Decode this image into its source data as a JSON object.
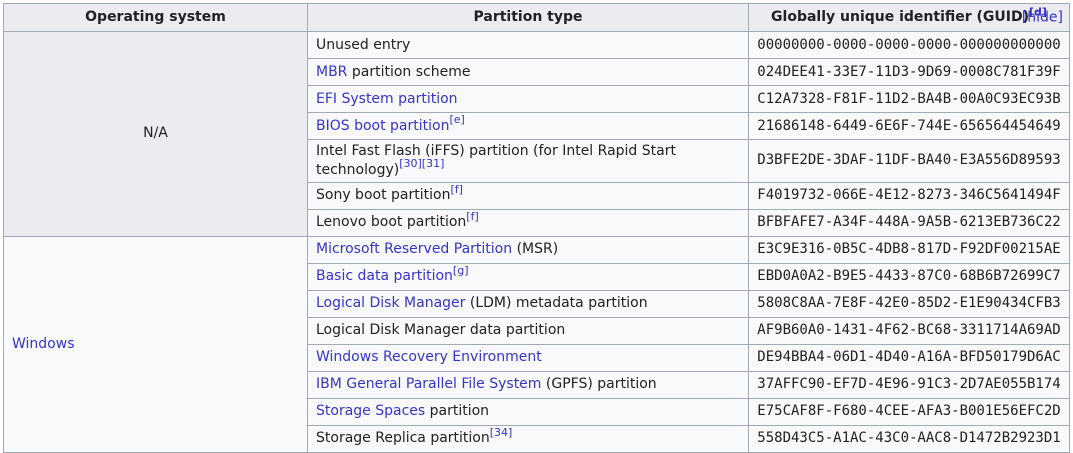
{
  "table": {
    "headers": {
      "os": "Operating system",
      "partition": "Partition type"
    },
    "guid_header": {
      "label": "Globally unique identifier (GUID)",
      "ref": "[d]",
      "toggle": "[hide]"
    },
    "os_groups": [
      {
        "label": "N/A",
        "link": false,
        "rowspan": 7
      },
      {
        "label": "Windows",
        "link": true,
        "rowspan": 8
      }
    ],
    "rows": [
      {
        "partition": [
          {
            "t": "Unused entry",
            "k": "text"
          }
        ],
        "guid": "00000000-0000-0000-0000-000000000000"
      },
      {
        "partition": [
          {
            "t": "MBR",
            "k": "link"
          },
          {
            "t": " partition scheme",
            "k": "text"
          }
        ],
        "guid": "024DEE41-33E7-11D3-9D69-0008C781F39F"
      },
      {
        "partition": [
          {
            "t": "EFI System partition",
            "k": "link"
          }
        ],
        "guid": "C12A7328-F81F-11D2-BA4B-00A0C93EC93B"
      },
      {
        "partition": [
          {
            "t": "BIOS boot partition",
            "k": "link"
          },
          {
            "t": "[e]",
            "k": "sup"
          }
        ],
        "guid": "21686148-6449-6E6F-744E-656564454649"
      },
      {
        "partition": [
          {
            "t": "Intel Fast Flash (iFFS) partition (for Intel Rapid Start technology)",
            "k": "text"
          },
          {
            "t": "[30]",
            "k": "sup"
          },
          {
            "t": "[31]",
            "k": "sup"
          }
        ],
        "guid": "D3BFE2DE-3DAF-11DF-BA40-E3A556D89593"
      },
      {
        "partition": [
          {
            "t": "Sony boot partition",
            "k": "text"
          },
          {
            "t": "[f]",
            "k": "sup"
          }
        ],
        "guid": "F4019732-066E-4E12-8273-346C5641494F"
      },
      {
        "partition": [
          {
            "t": "Lenovo boot partition",
            "k": "text"
          },
          {
            "t": "[f]",
            "k": "sup"
          }
        ],
        "guid": "BFBFAFE7-A34F-448A-9A5B-6213EB736C22"
      },
      {
        "partition": [
          {
            "t": "Microsoft Reserved Partition",
            "k": "link"
          },
          {
            "t": " (MSR)",
            "k": "text"
          }
        ],
        "guid": "E3C9E316-0B5C-4DB8-817D-F92DF00215AE"
      },
      {
        "partition": [
          {
            "t": "Basic data partition",
            "k": "link"
          },
          {
            "t": "[g]",
            "k": "sup"
          }
        ],
        "guid": "EBD0A0A2-B9E5-4433-87C0-68B6B72699C7"
      },
      {
        "partition": [
          {
            "t": "Logical Disk Manager",
            "k": "link"
          },
          {
            "t": " (LDM) metadata partition",
            "k": "text"
          }
        ],
        "guid": "5808C8AA-7E8F-42E0-85D2-E1E90434CFB3"
      },
      {
        "partition": [
          {
            "t": "Logical Disk Manager data partition",
            "k": "text"
          }
        ],
        "guid": "AF9B60A0-1431-4F62-BC68-3311714A69AD"
      },
      {
        "partition": [
          {
            "t": "Windows Recovery Environment",
            "k": "link"
          }
        ],
        "guid": "DE94BBA4-06D1-4D40-A16A-BFD50179D6AC"
      },
      {
        "partition": [
          {
            "t": "IBM General Parallel File System",
            "k": "link"
          },
          {
            "t": " (GPFS) partition",
            "k": "text"
          }
        ],
        "guid": "37AFFC90-EF7D-4E96-91C3-2D7AE055B174"
      },
      {
        "partition": [
          {
            "t": "Storage Spaces",
            "k": "link"
          },
          {
            "t": " partition",
            "k": "text"
          }
        ],
        "guid": "E75CAF8F-F680-4CEE-AFA3-B001E56EFC2D"
      },
      {
        "partition": [
          {
            "t": "Storage Replica partition",
            "k": "text"
          },
          {
            "t": "[34]",
            "k": "sup"
          }
        ],
        "guid": "558D43C5-A1AC-43C0-AAC8-D1472B2923D1"
      }
    ]
  },
  "colors": {
    "border": "#a2a9b1",
    "header_bg": "#eaecf0",
    "cell_bg": "#f8f9fa",
    "link": "#3733c8",
    "text": "#202122"
  }
}
